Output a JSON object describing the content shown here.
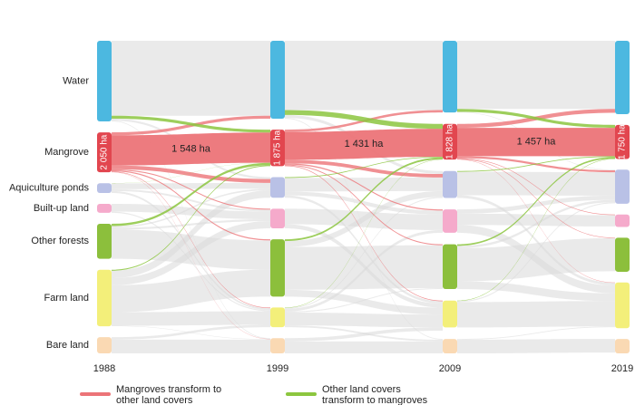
{
  "chart_data": {
    "type": "sankey",
    "categories": [
      "1988",
      "1999",
      "2009",
      "2019"
    ],
    "series": [
      {
        "name": "Water",
        "color": "#4cb8e0",
        "values": [
          4140,
          4000,
          3680,
          3770
        ]
      },
      {
        "name": "Mangrove",
        "color": "#e2464f",
        "values": [
          2050,
          1875,
          1828,
          1750
        ],
        "value_labels": [
          "2 050 ha",
          "1 875 ha",
          "1 828 ha",
          "1 750 ha"
        ]
      },
      {
        "name": "Aquiculture ponds",
        "color": "#b9c1e6",
        "values": [
          500,
          1060,
          1380,
          1750
        ]
      },
      {
        "name": "Built-up land",
        "color": "#f5aacb",
        "values": [
          460,
          1010,
          1200,
          640
        ]
      },
      {
        "name": "Other forests",
        "color": "#8cbf3c",
        "values": [
          1800,
          2940,
          2300,
          1750
        ]
      },
      {
        "name": "Farm land",
        "color": "#f3ef7a",
        "values": [
          2900,
          1010,
          1380,
          2350
        ]
      },
      {
        "name": "Bare land",
        "color": "#fad9b3",
        "values": [
          830,
          780,
          740,
          740
        ]
      }
    ],
    "links": [
      [
        {
          "from": "Mangrove",
          "to": "Mangrove",
          "value": 1548,
          "value_label": "1 548 ha"
        },
        {
          "from": "Mangrove",
          "to": "Water",
          "value": 150
        },
        {
          "from": "Mangrove",
          "to": "Aquiculture ponds",
          "value": 200
        },
        {
          "from": "Mangrove",
          "to": "Built-up land",
          "value": 50
        },
        {
          "from": "Mangrove",
          "to": "Other forests",
          "value": 60
        },
        {
          "from": "Mangrove",
          "to": "Farm land",
          "value": 30
        },
        {
          "from": "Mangrove",
          "to": "Bare land",
          "value": 12
        },
        {
          "from": "Water",
          "to": "Mangrove",
          "value": 150
        },
        {
          "from": "Other forests",
          "to": "Mangrove",
          "value": 120
        },
        {
          "from": "Farm land",
          "to": "Mangrove",
          "value": 50
        },
        {
          "from": "Aquiculture ponds",
          "to": "Mangrove",
          "value": 7
        },
        {
          "from": "Water",
          "to": "Water",
          "value": 3850
        },
        {
          "from": "Water",
          "to": "Aquiculture ponds",
          "value": 100
        },
        {
          "from": "Water",
          "to": "Bare land",
          "value": 40
        },
        {
          "from": "Aquiculture ponds",
          "to": "Aquiculture ponds",
          "value": 300
        },
        {
          "from": "Aquiculture ponds",
          "to": "Farm land",
          "value": 100
        },
        {
          "from": "Aquiculture ponds",
          "to": "Built-up land",
          "value": 93
        },
        {
          "from": "Built-up land",
          "to": "Built-up land",
          "value": 400
        },
        {
          "from": "Built-up land",
          "to": "Farm land",
          "value": 60
        },
        {
          "from": "Other forests",
          "to": "Other forests",
          "value": 1500
        },
        {
          "from": "Other forests",
          "to": "Built-up land",
          "value": 100
        },
        {
          "from": "Other forests",
          "to": "Aquiculture ponds",
          "value": 80
        },
        {
          "from": "Farm land",
          "to": "Other forests",
          "value": 1380
        },
        {
          "from": "Farm land",
          "to": "Aquiculture ponds",
          "value": 380
        },
        {
          "from": "Farm land",
          "to": "Farm land",
          "value": 695
        },
        {
          "from": "Farm land",
          "to": "Built-up land",
          "value": 367
        },
        {
          "from": "Farm land",
          "to": "Bare land",
          "value": 23
        },
        {
          "from": "Bare land",
          "to": "Bare land",
          "value": 705
        },
        {
          "from": "Bare land",
          "to": "Farm land",
          "value": 125
        }
      ],
      [
        {
          "from": "Mangrove",
          "to": "Mangrove",
          "value": 1431,
          "value_label": "1 431 ha"
        },
        {
          "from": "Mangrove",
          "to": "Water",
          "value": 120
        },
        {
          "from": "Mangrove",
          "to": "Aquiculture ponds",
          "value": 180
        },
        {
          "from": "Mangrove",
          "to": "Built-up land",
          "value": 60
        },
        {
          "from": "Mangrove",
          "to": "Other forests",
          "value": 50
        },
        {
          "from": "Mangrove",
          "to": "Farm land",
          "value": 34
        },
        {
          "from": "Water",
          "to": "Mangrove",
          "value": 250
        },
        {
          "from": "Other forests",
          "to": "Mangrove",
          "value": 90
        },
        {
          "from": "Aquiculture ponds",
          "to": "Mangrove",
          "value": 40
        },
        {
          "from": "Farm land",
          "to": "Mangrove",
          "value": 17
        },
        {
          "from": "Water",
          "to": "Water",
          "value": 3560
        },
        {
          "from": "Water",
          "to": "Aquiculture ponds",
          "value": 150
        },
        {
          "from": "Water",
          "to": "Bare land",
          "value": 40
        },
        {
          "from": "Aquiculture ponds",
          "to": "Aquiculture ponds",
          "value": 700
        },
        {
          "from": "Aquiculture ponds",
          "to": "Built-up land",
          "value": 200
        },
        {
          "from": "Aquiculture ponds",
          "to": "Farm land",
          "value": 120
        },
        {
          "from": "Built-up land",
          "to": "Built-up land",
          "value": 800
        },
        {
          "from": "Built-up land",
          "to": "Farm land",
          "value": 210
        },
        {
          "from": "Other forests",
          "to": "Other forests",
          "value": 2200
        },
        {
          "from": "Other forests",
          "to": "Aquiculture ponds",
          "value": 300
        },
        {
          "from": "Other forests",
          "to": "Farm land",
          "value": 350
        },
        {
          "from": "Farm land",
          "to": "Other forests",
          "value": 50
        },
        {
          "from": "Farm land",
          "to": "Farm land",
          "value": 666
        },
        {
          "from": "Farm land",
          "to": "Built-up land",
          "value": 140
        },
        {
          "from": "Farm land",
          "to": "Aquiculture ponds",
          "value": 50
        },
        {
          "from": "Farm land",
          "to": "Bare land",
          "value": 87
        },
        {
          "from": "Bare land",
          "to": "Bare land",
          "value": 613
        },
        {
          "from": "Bare land",
          "to": "Farm land",
          "value": 167
        }
      ],
      [
        {
          "from": "Mangrove",
          "to": "Mangrove",
          "value": 1457,
          "value_label": "1 457 ha"
        },
        {
          "from": "Mangrove",
          "to": "Water",
          "value": 200
        },
        {
          "from": "Mangrove",
          "to": "Aquiculture ponds",
          "value": 100
        },
        {
          "from": "Mangrove",
          "to": "Built-up land",
          "value": 30
        },
        {
          "from": "Mangrove",
          "to": "Other forests",
          "value": 25
        },
        {
          "from": "Mangrove",
          "to": "Farm land",
          "value": 16
        },
        {
          "from": "Water",
          "to": "Mangrove",
          "value": 150
        },
        {
          "from": "Other forests",
          "to": "Mangrove",
          "value": 80
        },
        {
          "from": "Aquiculture ponds",
          "to": "Mangrove",
          "value": 40
        },
        {
          "from": "Farm land",
          "to": "Mangrove",
          "value": 23
        },
        {
          "from": "Water",
          "to": "Water",
          "value": 3500
        },
        {
          "from": "Water",
          "to": "Aquiculture ponds",
          "value": 30
        },
        {
          "from": "Aquiculture ponds",
          "to": "Aquiculture ponds",
          "value": 1200
        },
        {
          "from": "Aquiculture ponds",
          "to": "Farm land",
          "value": 140
        },
        {
          "from": "Built-up land",
          "to": "Built-up land",
          "value": 580
        },
        {
          "from": "Built-up land",
          "to": "Farm land",
          "value": 400
        },
        {
          "from": "Built-up land",
          "to": "Aquiculture ponds",
          "value": 220
        },
        {
          "from": "Other forests",
          "to": "Other forests",
          "value": 1700
        },
        {
          "from": "Other forests",
          "to": "Farm land",
          "value": 400
        },
        {
          "from": "Other forests",
          "to": "Aquiculture ponds",
          "value": 120
        },
        {
          "from": "Farm land",
          "to": "Farm land",
          "value": 1300
        },
        {
          "from": "Farm land",
          "to": "Aquiculture ponds",
          "value": 57
        },
        {
          "from": "Bare land",
          "to": "Bare land",
          "value": 700
        },
        {
          "from": "Bare land",
          "to": "Farm land",
          "value": 40
        }
      ]
    ],
    "legend": [
      {
        "label": "Mangroves transform to other land covers",
        "color": "#ec7478"
      },
      {
        "label": "Other land covers transform to mangroves",
        "color": "#8cc63f"
      }
    ],
    "link_color": "#d9d9d9"
  }
}
